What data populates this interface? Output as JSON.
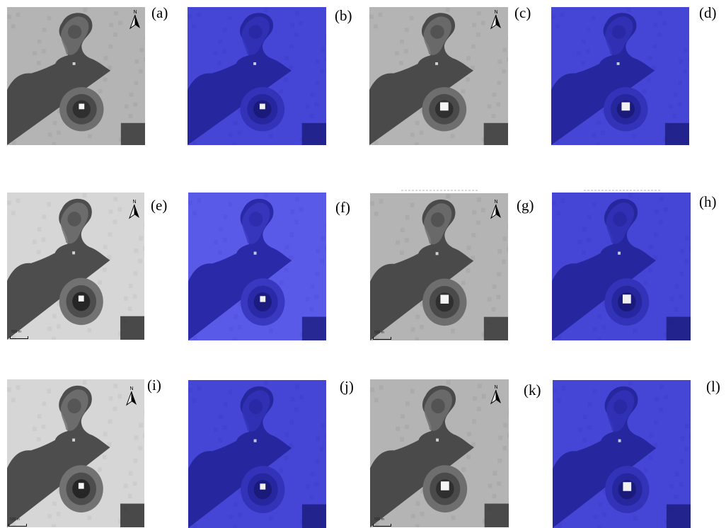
{
  "figure": {
    "panels": [
      {
        "id": "a",
        "label": "(a)",
        "style": "gray",
        "north_arrow": true,
        "scale_bar": false
      },
      {
        "id": "b",
        "label": "(b)",
        "style": "blue",
        "north_arrow": false,
        "scale_bar": false
      },
      {
        "id": "c",
        "label": "(c)",
        "style": "gray",
        "north_arrow": true,
        "scale_bar": false
      },
      {
        "id": "d",
        "label": "(d)",
        "style": "blue",
        "north_arrow": false,
        "scale_bar": false
      },
      {
        "id": "e",
        "label": "(e)",
        "style": "gray-light",
        "north_arrow": true,
        "scale_bar": true
      },
      {
        "id": "f",
        "label": "(f)",
        "style": "blue-light",
        "north_arrow": false,
        "scale_bar": false
      },
      {
        "id": "g",
        "label": "(g)",
        "style": "gray",
        "north_arrow": true,
        "scale_bar": true
      },
      {
        "id": "h",
        "label": "(h)",
        "style": "blue",
        "north_arrow": false,
        "scale_bar": false
      },
      {
        "id": "i",
        "label": "(i)",
        "style": "gray-light",
        "north_arrow": true,
        "scale_bar": true
      },
      {
        "id": "j",
        "label": "(j)",
        "style": "blue",
        "north_arrow": false,
        "scale_bar": false
      },
      {
        "id": "k",
        "label": "(k)",
        "style": "gray",
        "north_arrow": true,
        "scale_bar": true
      },
      {
        "id": "l",
        "label": "(l)",
        "style": "blue",
        "north_arrow": false,
        "scale_bar": false
      }
    ],
    "north_letter": "N",
    "scale_bar_text": "500 m",
    "colors": {
      "gray_background": "#b4b4b4",
      "gray_land": "#4a4a4a",
      "blue_background": "#4747d8",
      "blue_land": "#22229a",
      "hotspot": "#f2f2f2"
    }
  }
}
